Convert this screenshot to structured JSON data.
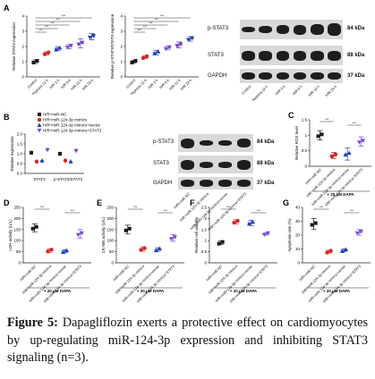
{
  "figure": {
    "caption_label": "Figure 5:",
    "caption_text": " Dapagliflozin exerts a protective effect on cardiomyocytes by up-regulating miR-124-3p expression and inhibiting STAT3 signaling (n=3).",
    "colors": {
      "ctrl": "#1a1a1a",
      "red": "#d62728",
      "blue": "#1f3fb4",
      "purple": "#7a4fd0",
      "violet": "#6b3fc2"
    }
  },
  "panels": {
    "A": {
      "letter": "A"
    },
    "B": {
      "letter": "B"
    },
    "C": {
      "letter": "C"
    },
    "D": {
      "letter": "D"
    },
    "E": {
      "letter": "E"
    },
    "F": {
      "letter": "F"
    },
    "G": {
      "letter": "G"
    }
  },
  "blotA": {
    "rows": [
      {
        "label": "p-STAT3",
        "kda": "84 kDa"
      },
      {
        "label": "STAT3",
        "kda": "88 kDa"
      },
      {
        "label": "GAPDH",
        "kda": "37 kDa"
      }
    ],
    "lanes": [
      "Control",
      "Hypoxia 12 h",
      "H/R 3 h",
      "H/R 6 h",
      "H/R 12 h",
      "H/R 24 h"
    ]
  },
  "blotB": {
    "rows": [
      {
        "label": "p-STAT3",
        "kda": "84 kDa"
      },
      {
        "label": "STAT3",
        "kda": "88 kDa"
      },
      {
        "label": "GAPDH",
        "kda": "37 kDa"
      }
    ],
    "lanes": [
      "H/R+miR-NC",
      "H/R+miR-124-3p mimics",
      "H/R+miR-124-3p mimics+vector",
      "H/R+miR-124-3p mimics+STAT3"
    ]
  },
  "chart_data": [
    {
      "panel": "A1",
      "type": "scatter",
      "ylabel": "Relative STAT3 expression",
      "categories": [
        "Control",
        "Hypoxia 12 h",
        "H/R 3 h",
        "H/R 6 h",
        "H/R 12 h",
        "H/R 24 h"
      ],
      "values": [
        1.0,
        1.55,
        1.85,
        2.0,
        2.2,
        2.65
      ],
      "errors": [
        0.12,
        0.1,
        0.12,
        0.15,
        0.3,
        0.2
      ],
      "yticks": [
        0,
        1,
        2,
        3,
        4
      ],
      "ylim": [
        0,
        4
      ]
    },
    {
      "panel": "A2",
      "type": "scatter",
      "ylabel": "Relative p-STAT3/STAT3 expression",
      "categories": [
        "Control",
        "Hypoxia 12 h",
        "H/R 3 h",
        "H/R 6 h",
        "H/R 12 h",
        "H/R 24 h"
      ],
      "values": [
        1.0,
        1.3,
        1.6,
        1.9,
        2.1,
        2.5
      ],
      "errors": [
        0.1,
        0.1,
        0.15,
        0.12,
        0.2,
        0.15
      ],
      "yticks": [
        0,
        1,
        2,
        3,
        4
      ],
      "ylim": [
        0,
        4
      ]
    },
    {
      "panel": "B",
      "type": "scatter",
      "ylabel": "Relative expression",
      "categories": [
        "STAT3",
        "p-STAT3/STAT3"
      ],
      "series": [
        {
          "name": "H/R+miR-NC",
          "values": [
            1.05,
            1.0
          ]
        },
        {
          "name": "H/R+miR-124-3p mimics",
          "values": [
            0.6,
            0.65
          ]
        },
        {
          "name": "H/R+miR-124-3p mimics+vector",
          "values": [
            0.65,
            0.6
          ]
        },
        {
          "name": "H/R+miR-124-3p mimics+STAT3",
          "values": [
            1.2,
            1.15
          ]
        }
      ],
      "yticks": [
        0.0,
        0.5,
        1.0,
        1.5,
        2.0
      ],
      "ylim": [
        0,
        2
      ]
    },
    {
      "panel": "C",
      "type": "scatter",
      "ylabel": "Relative ROS level",
      "categories": [
        "H/R+miR-NC",
        "H/R+miR-124-3p mimics",
        "H/R+miR-124-3p mimics+vector",
        "H/R+miR-124-3p mimics+STAT3"
      ],
      "values": [
        1.0,
        0.35,
        0.4,
        0.8
      ],
      "errors": [
        0.15,
        0.1,
        0.2,
        0.15
      ],
      "yticks": [
        0.0,
        0.5,
        1.0,
        1.5
      ],
      "ylim": [
        0,
        1.5
      ],
      "xnote": "+ 20 μM DAPA"
    },
    {
      "panel": "D",
      "type": "scatter",
      "ylabel": "LDH activity (U/L)",
      "categories": [
        "H/R+miR-NC",
        "H/R+miR-124-3p mimics",
        "H/R+miR-124-3p mimics+vector",
        "H/R+miR-124-3p mimics+STAT3"
      ],
      "values": [
        158,
        55,
        52,
        130
      ],
      "errors": [
        18,
        8,
        7,
        20
      ],
      "yticks": [
        0,
        50,
        100,
        150,
        200,
        250
      ],
      "ylim": [
        0,
        250
      ],
      "xnote": "+ 20 μM DAPA"
    },
    {
      "panel": "E",
      "type": "scatter",
      "ylabel": "CK-MB activity (U/L)",
      "categories": [
        "H/R+miR-NC",
        "H/R+miR-124-3p mimics",
        "H/R+miR-124-3p mimics+vector",
        "H/R+miR-124-3p mimics+STAT3"
      ],
      "values": [
        150,
        62,
        60,
        112
      ],
      "errors": [
        20,
        10,
        8,
        15
      ],
      "yticks": [
        0,
        50,
        100,
        150,
        200,
        250
      ],
      "ylim": [
        0,
        250
      ],
      "xnote": "+ 20 μM DAPA"
    },
    {
      "panel": "F",
      "type": "scatter",
      "ylabel": "Relative cell viability",
      "categories": [
        "H/R+miR-NC",
        "H/R+miR-124-3p mimics",
        "H/R+miR-124-3p mimics+vector",
        "H/R+miR-124-3p mimics+STAT3"
      ],
      "values": [
        0.9,
        1.85,
        1.8,
        1.3
      ],
      "errors": [
        0.08,
        0.1,
        0.12,
        0.05
      ],
      "yticks": [
        0.0,
        0.5,
        1.0,
        1.5,
        2.0,
        2.5
      ],
      "ylim": [
        0,
        2.5
      ],
      "xnote": "+ 20 μM DAPA"
    },
    {
      "panel": "G",
      "type": "scatter",
      "ylabel": "Apoptosis rate (%)",
      "categories": [
        "H/R+miR-NC",
        "H/R+miR-124-3p mimics",
        "H/R+miR-124-3p mimics+vector",
        "H/R+miR-124-3p mimics+STAT3"
      ],
      "values": [
        28,
        8,
        9,
        22
      ],
      "errors": [
        4,
        1,
        1,
        2
      ],
      "yticks": [
        0,
        10,
        20,
        30,
        40
      ],
      "ylim": [
        0,
        40
      ],
      "xnote": "+ 20 μM DAPA"
    }
  ]
}
